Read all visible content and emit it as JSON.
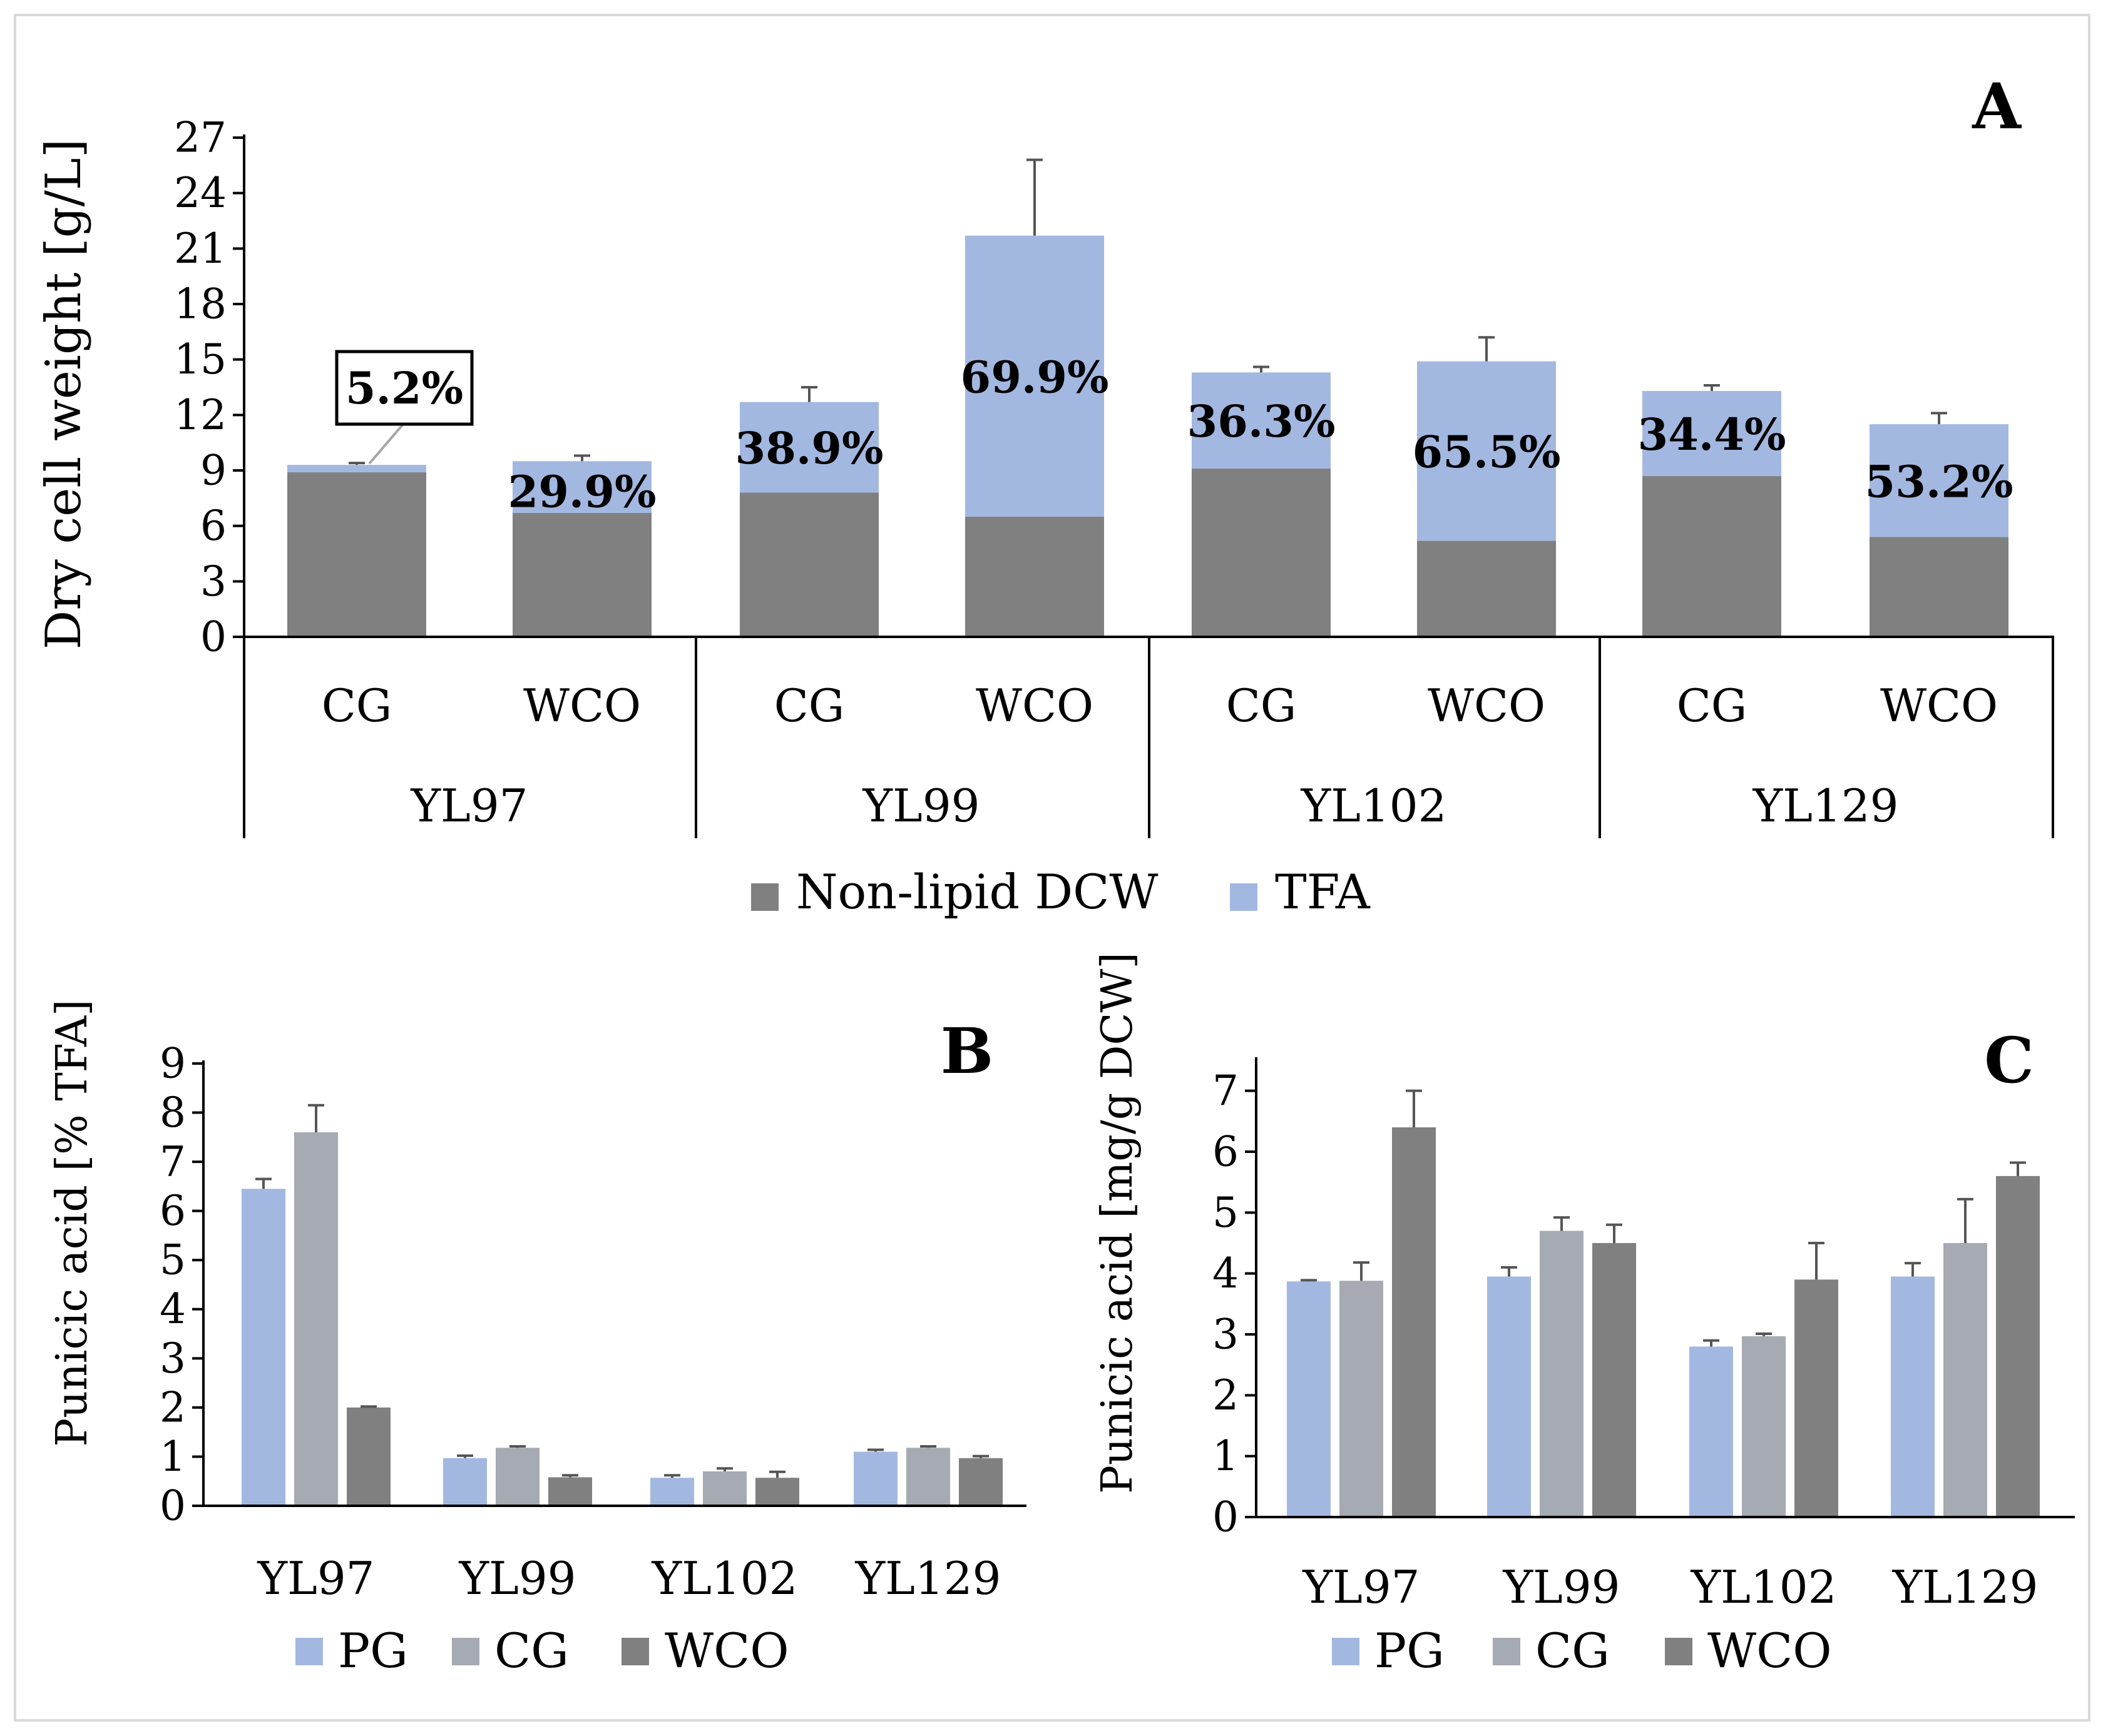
{
  "colors": {
    "non_lipid": "#808080",
    "tfa": "#a3b8e0",
    "pg": "#a3b8e0",
    "cg": "#a6aab2",
    "wco": "#808080",
    "axis": "#000000",
    "errorbar": "#555555"
  },
  "chart_data": [
    {
      "id": "A",
      "panel_label": "A",
      "type": "bar",
      "stacked": true,
      "ylabel": "Dry cell weight [g/L]",
      "ylim": [
        0,
        27
      ],
      "yticks": [
        "0",
        "3",
        "6",
        "9",
        "12",
        "15",
        "18",
        "21",
        "24",
        "27"
      ],
      "groups": [
        "YL97",
        "YL99",
        "YL102",
        "YL129"
      ],
      "categories": [
        "CG",
        "WCO",
        "CG",
        "WCO",
        "CG",
        "WCO",
        "CG",
        "WCO"
      ],
      "series": [
        {
          "name": "Non-lipid DCW",
          "values": [
            8.9,
            6.7,
            7.8,
            6.5,
            9.1,
            5.2,
            8.7,
            5.4
          ]
        },
        {
          "name": "TFA",
          "values": [
            0.4,
            2.8,
            4.9,
            15.2,
            5.2,
            9.7,
            4.6,
            6.1
          ]
        }
      ],
      "total_error": [
        0.1,
        0.3,
        0.8,
        4.1,
        0.3,
        1.3,
        0.3,
        0.6
      ],
      "labels": [
        "5.2%",
        "29.9%",
        "38.9%",
        "69.9%",
        "36.3%",
        "65.5%",
        "34.4%",
        "53.2%"
      ],
      "legend": [
        "Non-lipid DCW",
        "TFA"
      ]
    },
    {
      "id": "B",
      "panel_label": "B",
      "type": "bar",
      "ylabel": "Punicic acid [% TFA]",
      "ylim": [
        0,
        9
      ],
      "yticks": [
        "0",
        "1",
        "2",
        "3",
        "4",
        "5",
        "6",
        "7",
        "8",
        "9"
      ],
      "categories": [
        "YL97",
        "YL99",
        "YL102",
        "YL129"
      ],
      "series": [
        {
          "name": "PG",
          "values": [
            6.45,
            0.97,
            0.57,
            1.1
          ],
          "errors": [
            0.2,
            0.05,
            0.05,
            0.04
          ]
        },
        {
          "name": "CG",
          "values": [
            7.6,
            1.18,
            0.7,
            1.18
          ],
          "errors": [
            0.55,
            0.03,
            0.06,
            0.03
          ]
        },
        {
          "name": "WCO",
          "values": [
            2.0,
            0.58,
            0.57,
            0.97
          ],
          "errors": [
            0.02,
            0.04,
            0.12,
            0.04
          ]
        }
      ],
      "legend": [
        "PG",
        "CG",
        "WCO"
      ]
    },
    {
      "id": "C",
      "panel_label": "C",
      "type": "bar",
      "ylabel": "Punicic acid [mg/g DCW]",
      "ylim": [
        0,
        7.5
      ],
      "yticks": [
        "0",
        "1",
        "2",
        "3",
        "4",
        "5",
        "6",
        "7"
      ],
      "categories": [
        "YL97",
        "YL99",
        "YL102",
        "YL129"
      ],
      "series": [
        {
          "name": "PG",
          "values": [
            3.87,
            3.95,
            2.8,
            3.95
          ],
          "errors": [
            0.02,
            0.15,
            0.1,
            0.22
          ]
        },
        {
          "name": "CG",
          "values": [
            3.88,
            4.7,
            2.97,
            4.5
          ],
          "errors": [
            0.3,
            0.22,
            0.04,
            0.72
          ]
        },
        {
          "name": "WCO",
          "values": [
            6.4,
            4.5,
            3.9,
            5.6
          ],
          "errors": [
            0.6,
            0.3,
            0.6,
            0.22
          ]
        }
      ],
      "legend": [
        "PG",
        "CG",
        "WCO"
      ]
    }
  ]
}
